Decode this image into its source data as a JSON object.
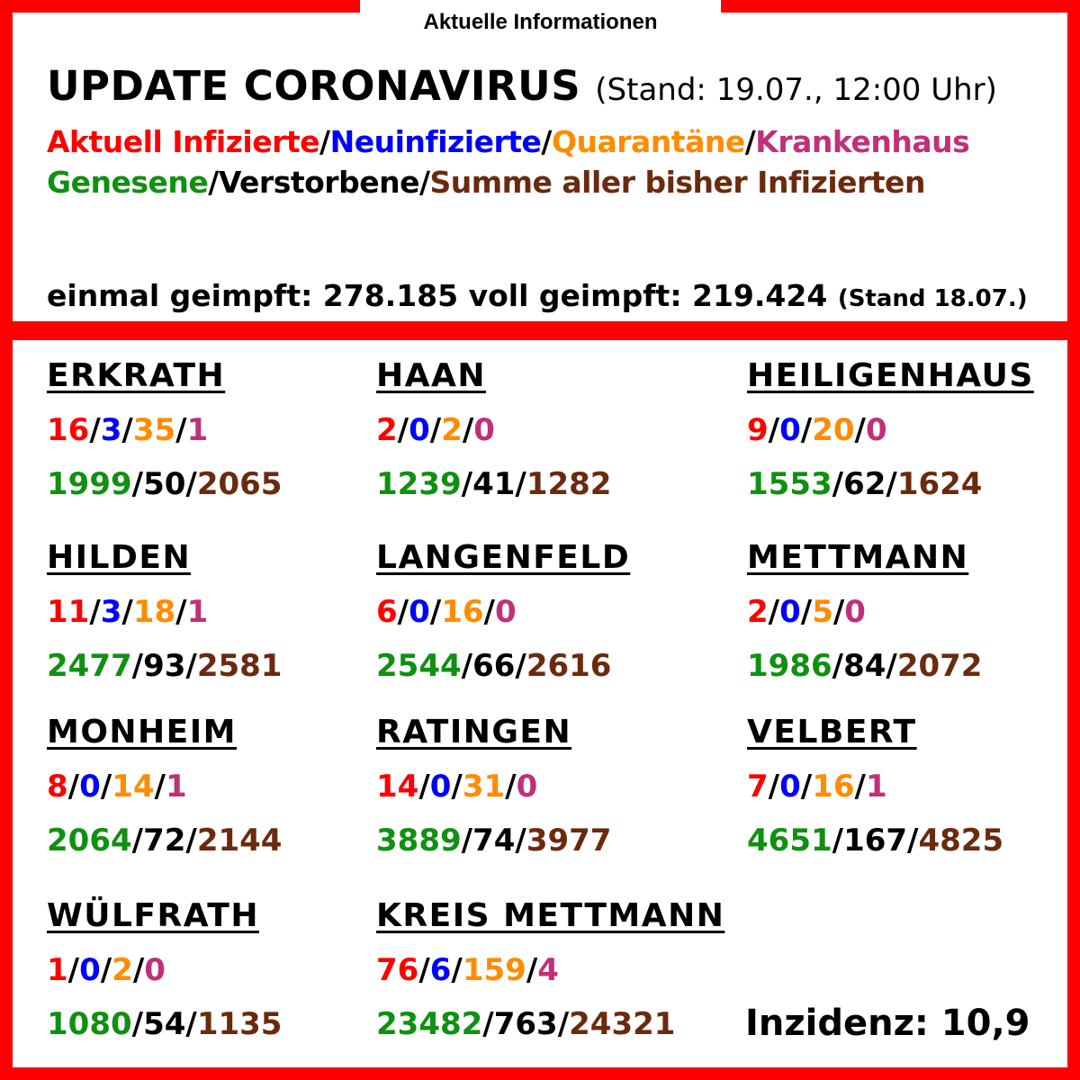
{
  "banner": "Aktuelle Informationen",
  "title": "UPDATE CORONAVIRUS",
  "title_stand": "(Stand: 19.07., 12:00 Uhr)",
  "legend": {
    "aktuell": "Aktuell Infizierte",
    "neu": "Neuinfizierte",
    "quarantaene": "Quarantäne",
    "krankenhaus": "Krankenhaus",
    "genesene": "Genesene",
    "verstorbene": "Verstorbene",
    "summe": "Summe aller bisher Infizierten",
    "sep": "/"
  },
  "vaccination": {
    "text": "einmal geimpft: 278.185 voll geimpft: 219.424",
    "stand": "(Stand 18.07.)"
  },
  "colors": {
    "aktuell": "#ff0000",
    "neu": "#0000ff",
    "quarantaene": "#ff8c00",
    "krankenhaus": "#c0307a",
    "genesene": "#109010",
    "verstorbene": "#000000",
    "summe": "#6b2a0e",
    "frame": "#ff0000"
  },
  "cities": [
    {
      "name": "ERKRATH",
      "aktuell": "16",
      "neu": "3",
      "quarantaene": "35",
      "krankenhaus": "1",
      "genesene": "1999",
      "verstorbene": "50",
      "summe": "2065"
    },
    {
      "name": "HAAN",
      "aktuell": "2",
      "neu": "0",
      "quarantaene": "2",
      "krankenhaus": "0",
      "genesene": "1239",
      "verstorbene": "41",
      "summe": "1282"
    },
    {
      "name": "HEILIGENHAUS",
      "aktuell": "9",
      "neu": "0",
      "quarantaene": "20",
      "krankenhaus": "0",
      "genesene": "1553",
      "verstorbene": "62",
      "summe": "1624"
    },
    {
      "name": "HILDEN",
      "aktuell": "11",
      "neu": "3",
      "quarantaene": "18",
      "krankenhaus": "1",
      "genesene": "2477",
      "verstorbene": "93",
      "summe": "2581"
    },
    {
      "name": "LANGENFELD",
      "aktuell": "6",
      "neu": "0",
      "quarantaene": "16",
      "krankenhaus": "0",
      "genesene": "2544",
      "verstorbene": "66",
      "summe": "2616"
    },
    {
      "name": "METTMANN",
      "aktuell": "2",
      "neu": "0",
      "quarantaene": "5",
      "krankenhaus": "0",
      "genesene": "1986",
      "verstorbene": "84",
      "summe": "2072"
    },
    {
      "name": "MONHEIM",
      "aktuell": "8",
      "neu": "0",
      "quarantaene": "14",
      "krankenhaus": "1",
      "genesene": "2064",
      "verstorbene": "72",
      "summe": "2144"
    },
    {
      "name": "RATINGEN",
      "aktuell": "14",
      "neu": "0",
      "quarantaene": "31",
      "krankenhaus": "0",
      "genesene": "3889",
      "verstorbene": "74",
      "summe": "3977"
    },
    {
      "name": "VELBERT",
      "aktuell": "7",
      "neu": "0",
      "quarantaene": "16",
      "krankenhaus": "1",
      "genesene": "4651",
      "verstorbene": "167",
      "summe": "4825"
    },
    {
      "name": "WÜLFRATH",
      "aktuell": "1",
      "neu": "0",
      "quarantaene": "2",
      "krankenhaus": "0",
      "genesene": "1080",
      "verstorbene": "54",
      "summe": "1135"
    },
    {
      "name": "KREIS METTMANN",
      "aktuell": "76",
      "neu": "6",
      "quarantaene": "159",
      "krankenhaus": "4",
      "genesene": "23482",
      "verstorbene": "763",
      "summe": "24321"
    }
  ],
  "inzidenz": "Inzidenz: 10,9"
}
